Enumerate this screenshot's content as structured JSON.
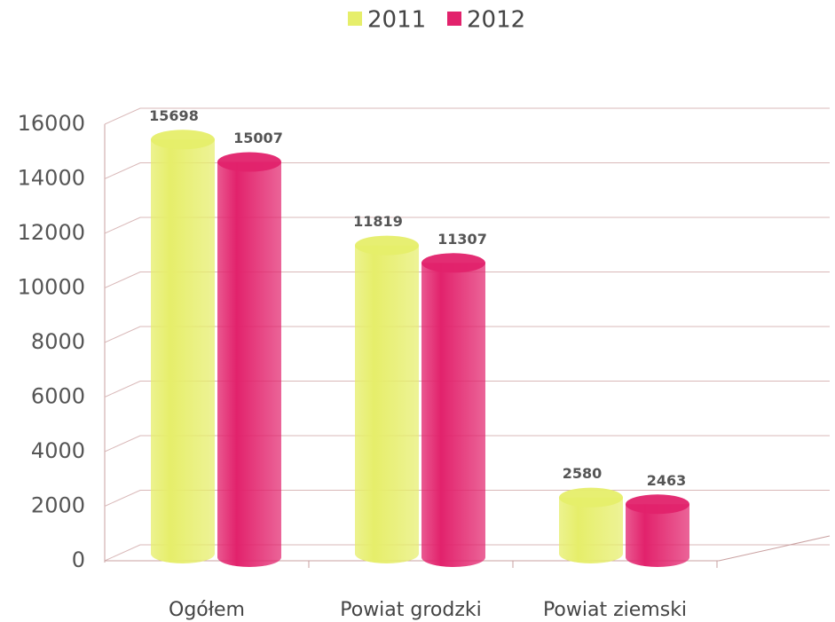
{
  "chart_data": {
    "type": "bar3d",
    "categories": [
      "Ogółem",
      "Powiat grodzki",
      "Powiat ziemski"
    ],
    "series": [
      {
        "name": "2011",
        "color": "#e6ee6a",
        "values": [
          15698,
          11819,
          2580
        ]
      },
      {
        "name": "2012",
        "color": "#e2226c",
        "values": [
          15007,
          11307,
          2463
        ]
      }
    ],
    "ylim": [
      0,
      16000
    ],
    "yticks": [
      0,
      2000,
      4000,
      6000,
      8000,
      10000,
      12000,
      14000,
      16000
    ],
    "grid": true,
    "legend": "top"
  }
}
